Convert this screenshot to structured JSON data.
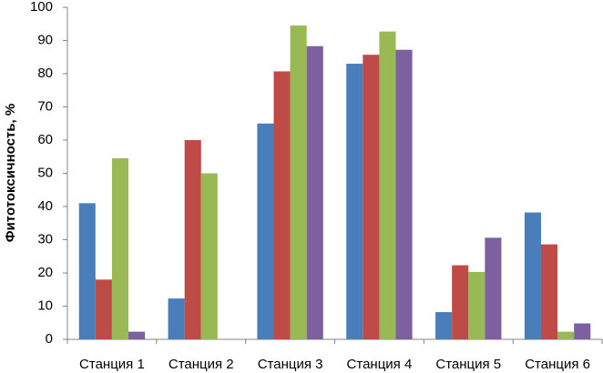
{
  "chart_data": {
    "type": "bar",
    "y_label": "Фитотоксичность, %",
    "categories": [
      "Станция 1",
      "Станция 2",
      "Станция 3",
      "Станция 4",
      "Станция 5",
      "Станция 6"
    ],
    "series": [
      {
        "color": "#4a7ebb",
        "values": [
          41,
          12.3,
          65,
          83,
          8.2,
          38.2
        ]
      },
      {
        "color": "#be4b48",
        "values": [
          18,
          60,
          80.7,
          85.7,
          22.3,
          28.6
        ]
      },
      {
        "color": "#98b954",
        "values": [
          54.5,
          50,
          94.5,
          92.7,
          20.3,
          2.3
        ]
      },
      {
        "color": "#7d60a0",
        "values": [
          2.3,
          0,
          88.3,
          87.2,
          30.6,
          4.8
        ]
      }
    ],
    "ylim": [
      0,
      100
    ],
    "yticks": [
      0,
      10,
      20,
      30,
      40,
      50,
      60,
      70,
      80,
      90,
      100
    ],
    "grid": false
  }
}
